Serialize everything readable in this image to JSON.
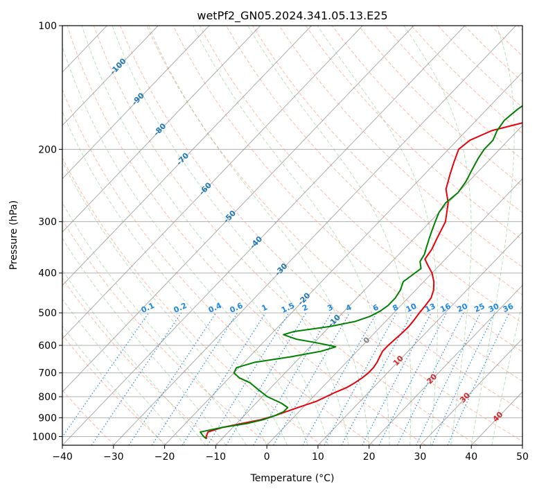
{
  "chart_data": {
    "type": "line",
    "title": "wetPf2_GN05.2024.341.05.13.E25",
    "xlabel": "Temperature (°C)",
    "ylabel": "Pressure (hPa)",
    "xlim": [
      -40,
      50
    ],
    "ylim": [
      1050,
      100
    ],
    "y_scale": "log",
    "grid": true,
    "x_ticks": [
      "−40",
      "−30",
      "−20",
      "−10",
      "0",
      "10",
      "20",
      "30",
      "40",
      "50"
    ],
    "y_ticks": [
      "100",
      "200",
      "300",
      "400",
      "500",
      "600",
      "700",
      "800",
      "900",
      "1000"
    ],
    "isotherm_labels": [
      "-100",
      "-90",
      "-80",
      "-70",
      "-60",
      "-50",
      "-40",
      "-30",
      "-20",
      "-10",
      "0",
      "10",
      "20",
      "30",
      "40"
    ],
    "mixing_ratio_labels": [
      "0.1",
      "0.2",
      "0.4",
      "0.6",
      "1",
      "1.5",
      "2",
      "3",
      "4",
      "6",
      "8",
      "10",
      "13",
      "16",
      "20",
      "25",
      "30",
      "36"
    ],
    "colors": {
      "temperature": "#e8000b",
      "dewpoint": "#008000",
      "isotherm_label": "#1f77b4",
      "mixing_ratio": "#1e88e5",
      "dry_adiabat": "#ff8c69",
      "moist_adiabat": "#66bb6a",
      "high_isotherm_label": "#d62728"
    },
    "series": [
      {
        "key": "temperature",
        "points": [
          [
            1013,
            -13.0
          ],
          [
            1000,
            -13.5
          ],
          [
            975,
            -14.0
          ],
          [
            950,
            -12.0
          ],
          [
            930,
            -9.0
          ],
          [
            910,
            -6.0
          ],
          [
            890,
            -4.0
          ],
          [
            870,
            -2.5
          ],
          [
            850,
            -1.0
          ],
          [
            820,
            1.5
          ],
          [
            800,
            2.5
          ],
          [
            780,
            3.5
          ],
          [
            760,
            4.8
          ],
          [
            740,
            5.5
          ],
          [
            720,
            6.0
          ],
          [
            700,
            6.3
          ],
          [
            680,
            6.3
          ],
          [
            660,
            6.0
          ],
          [
            640,
            5.5
          ],
          [
            620,
            5.0
          ],
          [
            600,
            5.0
          ],
          [
            580,
            5.2
          ],
          [
            560,
            5.4
          ],
          [
            540,
            5.5
          ],
          [
            520,
            5.3
          ],
          [
            500,
            5.0
          ],
          [
            480,
            4.8
          ],
          [
            460,
            4.5
          ],
          [
            440,
            3.5
          ],
          [
            420,
            2.0
          ],
          [
            400,
            0.0
          ],
          [
            385,
            -2.0
          ],
          [
            370,
            -4.0
          ],
          [
            350,
            -4.5
          ],
          [
            330,
            -5.5
          ],
          [
            300,
            -7.0
          ],
          [
            270,
            -10.0
          ],
          [
            250,
            -13.0
          ],
          [
            230,
            -15.0
          ],
          [
            215,
            -16.5
          ],
          [
            200,
            -18.0
          ],
          [
            190,
            -17.5
          ],
          [
            180,
            -15.0
          ],
          [
            170,
            -9.0
          ],
          [
            160,
            -6.0
          ],
          [
            150,
            -5.0
          ],
          [
            140,
            -3.5
          ],
          [
            130,
            -1.5
          ],
          [
            120,
            0.5
          ],
          [
            110,
            3.0
          ],
          [
            100,
            4.5
          ]
        ]
      },
      {
        "key": "dewpoint",
        "points": [
          [
            1013,
            -13.0
          ],
          [
            1000,
            -14.0
          ],
          [
            975,
            -15.5
          ],
          [
            950,
            -12.0
          ],
          [
            930,
            -8.0
          ],
          [
            910,
            -5.5
          ],
          [
            890,
            -4.0
          ],
          [
            870,
            -3.0
          ],
          [
            850,
            -3.0
          ],
          [
            830,
            -5.0
          ],
          [
            800,
            -9.0
          ],
          [
            770,
            -12.0
          ],
          [
            740,
            -15.0
          ],
          [
            720,
            -18.0
          ],
          [
            700,
            -20.0
          ],
          [
            680,
            -20.5
          ],
          [
            660,
            -18.0
          ],
          [
            640,
            -12.0
          ],
          [
            620,
            -7.0
          ],
          [
            605,
            -5.0
          ],
          [
            600,
            -6.5
          ],
          [
            590,
            -10.0
          ],
          [
            580,
            -14.0
          ],
          [
            565,
            -17.5
          ],
          [
            555,
            -16.0
          ],
          [
            540,
            -10.0
          ],
          [
            525,
            -6.0
          ],
          [
            510,
            -4.0
          ],
          [
            495,
            -3.0
          ],
          [
            480,
            -2.5
          ],
          [
            460,
            -2.5
          ],
          [
            440,
            -3.0
          ],
          [
            420,
            -4.0
          ],
          [
            405,
            -3.5
          ],
          [
            390,
            -3.0
          ],
          [
            375,
            -4.5
          ],
          [
            360,
            -5.0
          ],
          [
            345,
            -6.0
          ],
          [
            330,
            -7.0
          ],
          [
            315,
            -8.0
          ],
          [
            300,
            -9.0
          ],
          [
            285,
            -10.0
          ],
          [
            270,
            -10.5
          ],
          [
            255,
            -10.0
          ],
          [
            240,
            -10.5
          ],
          [
            225,
            -11.5
          ],
          [
            210,
            -12.5
          ],
          [
            200,
            -13.0
          ],
          [
            190,
            -13.0
          ],
          [
            180,
            -14.0
          ],
          [
            170,
            -14.5
          ],
          [
            160,
            -14.0
          ],
          [
            150,
            -13.0
          ],
          [
            140,
            -11.0
          ],
          [
            130,
            -8.5
          ],
          [
            120,
            -5.5
          ],
          [
            110,
            -2.0
          ],
          [
            100,
            0.5
          ]
        ]
      }
    ]
  }
}
